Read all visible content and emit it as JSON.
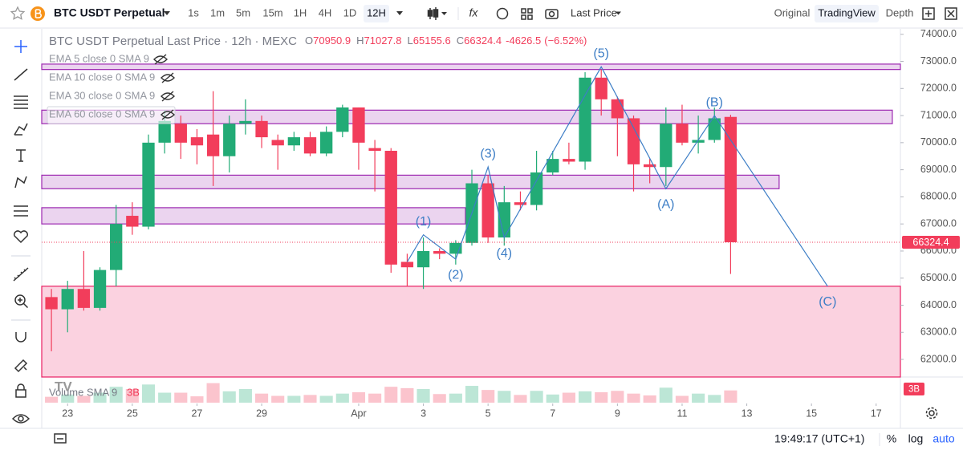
{
  "toolbar": {
    "symbol": "BTC USDT Perpetual",
    "intervals": [
      "1s",
      "1m",
      "5m",
      "15m",
      "1H",
      "4H",
      "1D",
      "12H"
    ],
    "active_interval": 7,
    "price_type": "Last Price",
    "views": [
      "Original",
      "TradingView",
      "Depth"
    ],
    "active_view": 1
  },
  "chart_data": {
    "type": "candlestick",
    "title": "BTC USDT Perpetual Last Price · 12h · MEXC",
    "legend_labels": [
      "O",
      "H",
      "L",
      "C"
    ],
    "legend_values": [
      70950.9,
      71027.8,
      65155.6,
      66324.4
    ],
    "change": -4626.5,
    "change_pct": {
      "value": -6.52,
      "label": "(−6.52%)"
    },
    "indicators": [
      "EMA 5 close 0 SMA 9",
      "EMA 10 close 0 SMA 9",
      "EMA 30 close 0 SMA 9",
      "EMA 60 close 0 SMA 9"
    ],
    "up_color": "#22ab76",
    "down_color": "#f23d5b",
    "open": [
      64300,
      63850,
      64600,
      63900,
      65300,
      67300,
      66900,
      70000,
      70700,
      70200,
      70300,
      69500,
      70700,
      70800,
      70100,
      69900,
      70200,
      69600,
      70400,
      71300,
      69800,
      69700,
      65600,
      65400,
      66000,
      65900,
      66300,
      68500,
      66500,
      67800,
      67700,
      68900,
      69400,
      69300,
      72400,
      71600,
      70900,
      69200,
      69100,
      70700,
      70000,
      70100,
      70950.9
    ],
    "high": [
      64600,
      64900,
      66000,
      65400,
      67700,
      67800,
      70300,
      71200,
      71000,
      70500,
      71900,
      71000,
      71600,
      71000,
      70300,
      70400,
      70400,
      70600,
      71400,
      71300,
      70100,
      69800,
      65900,
      66500,
      66100,
      66400,
      69000,
      68800,
      68400,
      68200,
      69700,
      69700,
      70000,
      72600,
      72700,
      71700,
      71000,
      69400,
      71300,
      71400,
      71000,
      71300,
      71027.8
    ],
    "low": [
      62300,
      63000,
      63800,
      63800,
      64700,
      66600,
      66800,
      69600,
      69400,
      69200,
      68400,
      68900,
      70300,
      69800,
      69000,
      69700,
      69500,
      69500,
      70200,
      69000,
      68200,
      65200,
      64700,
      64600,
      65700,
      65500,
      66200,
      66300,
      66200,
      67500,
      67500,
      68800,
      69200,
      69000,
      71000,
      69500,
      68200,
      68500,
      68400,
      69900,
      69600,
      70000,
      65155.6
    ],
    "close": [
      63850,
      64600,
      63900,
      65300,
      67000,
      66900,
      70000,
      70800,
      70000,
      69900,
      69500,
      70700,
      70800,
      70200,
      69900,
      70200,
      69600,
      70400,
      71300,
      70000,
      69700,
      65500,
      65400,
      66000,
      65900,
      66300,
      68500,
      66500,
      67800,
      67700,
      68900,
      69400,
      69300,
      72400,
      71600,
      70900,
      69200,
      69100,
      70700,
      70000,
      70100,
      70900,
      66324.4
    ],
    "xlim": [
      -0.6,
      52.5
    ],
    "xticks": [
      {
        "value": 1,
        "label": "23"
      },
      {
        "value": 5,
        "label": "25"
      },
      {
        "value": 9,
        "label": "27"
      },
      {
        "value": 13,
        "label": "29"
      },
      {
        "value": 19,
        "label": "Apr"
      },
      {
        "value": 23,
        "label": "3"
      },
      {
        "value": 27,
        "label": "5"
      },
      {
        "value": 31,
        "label": "7"
      },
      {
        "value": 35,
        "label": "9"
      },
      {
        "value": 39,
        "label": "11"
      },
      {
        "value": 43,
        "label": "13"
      },
      {
        "value": 47,
        "label": "15"
      },
      {
        "value": 51,
        "label": "17"
      }
    ],
    "ylim": [
      61350,
      74200
    ],
    "yticks": [
      {
        "value": 62000,
        "label": "62000.0"
      },
      {
        "value": 63000,
        "label": "63000.0"
      },
      {
        "value": 64000,
        "label": "64000.0"
      },
      {
        "value": 65000,
        "label": "65000.0"
      },
      {
        "value": 66000,
        "label": "66000.0"
      },
      {
        "value": 67000,
        "label": "67000.0"
      },
      {
        "value": 68000,
        "label": "68000.0"
      },
      {
        "value": 69000,
        "label": "69000.0"
      },
      {
        "value": 70000,
        "label": "70000.0"
      },
      {
        "value": 71000,
        "label": "71000.0"
      },
      {
        "value": 72000,
        "label": "72000.0"
      },
      {
        "value": 73000,
        "label": "73000.0"
      },
      {
        "value": 74000,
        "label": "74000.0"
      }
    ],
    "last_price": 66324.4,
    "zones": [
      {
        "x": [
          -0.6,
          52.5
        ],
        "ylim": [
          72700,
          72900
        ],
        "color": "#9c27b0"
      },
      {
        "x": [
          -0.6,
          52.0
        ],
        "ylim": [
          70700,
          71200
        ],
        "color": "#9c27b0"
      },
      {
        "x": [
          -0.6,
          45.0
        ],
        "ylim": [
          68300,
          68800
        ],
        "color": "#9c27b0"
      },
      {
        "x": [
          -0.6,
          25.6
        ],
        "ylim": [
          67000,
          67600
        ],
        "color": "#9c27b0"
      },
      {
        "x": [
          -0.6,
          52.5
        ],
        "ylim": [
          61350,
          64700
        ],
        "color": "#e91e63"
      }
    ],
    "wave": {
      "color": "#3d7ec6",
      "labels": [
        null,
        "(1)",
        "(2)",
        "(3)",
        "(4)",
        "(5)",
        "(A)",
        "(B)",
        "(C)"
      ],
      "x": [
        22,
        23,
        25,
        27,
        28,
        34,
        38,
        41,
        48
      ],
      "y": [
        65600,
        66600,
        65700,
        69100,
        66500,
        72800,
        68300,
        71000,
        64700
      ]
    },
    "volume": {
      "title": "Volume SMA 9",
      "values": [
        1.3,
        1.8,
        1.5,
        2.2,
        3.5,
        3.0,
        4.0,
        2.2,
        2.2,
        1.4,
        4.3,
        2.5,
        3.0,
        2.0,
        1.5,
        1.5,
        1.7,
        1.5,
        2.0,
        2.3,
        2.0,
        3.5,
        3.2,
        3.0,
        1.9,
        2.0,
        3.7,
        2.8,
        2.6,
        1.7,
        2.6,
        1.8,
        2.2,
        2.5,
        2.3,
        2.6,
        2.0,
        1.6,
        3.3,
        1.5,
        2.0,
        1.7,
        2.7
      ],
      "ylim": [
        0,
        5.65
      ],
      "tick": {
        "value": 3,
        "label": "3B"
      }
    }
  },
  "status_bar": {
    "time": "19:49:17 (UTC+1)",
    "options": [
      "%",
      "log",
      "auto"
    ]
  }
}
